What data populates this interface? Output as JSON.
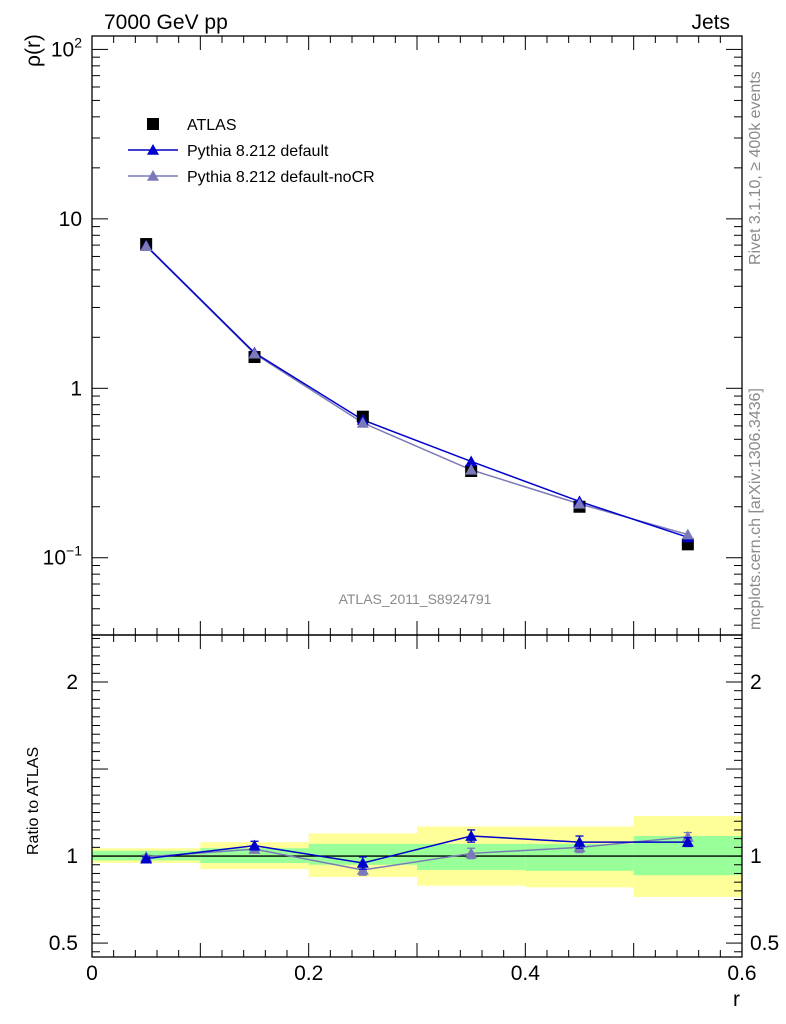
{
  "header": {
    "left": "7000 GeV pp",
    "right": "Jets"
  },
  "side_texts": {
    "rivet": "Rivet 3.1.10, ≥ 400k events",
    "mcplots": "mcplots.cern.ch [arXiv:1306.3436]"
  },
  "colors": {
    "data": "#000000",
    "default": "#0000cc",
    "nocr": "#7a7ab8",
    "band_inner": "#99ff99",
    "band_outer": "#ffff99"
  },
  "chart_data": [
    {
      "type": "line",
      "title": "ATLAS_2011_S8924791",
      "xlabel": "r",
      "ylabel": "ρ(r)",
      "yscale": "log",
      "xlim": [
        0,
        0.6
      ],
      "ylim": [
        0.035,
        120
      ],
      "y_ticks": [
        {
          "value": 0.1,
          "base": "10",
          "exp": "−1"
        },
        {
          "value": 1,
          "base": "1",
          "exp": ""
        },
        {
          "value": 10,
          "base": "10",
          "exp": ""
        },
        {
          "value": 100,
          "base": "10",
          "exp": "2"
        }
      ],
      "legend": [
        "ATLAS",
        "Pythia 8.212 default",
        "Pythia 8.212 default-noCR"
      ],
      "x": [
        0.05,
        0.15,
        0.25,
        0.35,
        0.45,
        0.55
      ],
      "series": [
        {
          "name": "ATLAS",
          "values": [
            7.1,
            1.53,
            0.68,
            0.325,
            0.2,
            0.12
          ]
        },
        {
          "name": "Pythia 8.212 default",
          "values": [
            6.95,
            1.62,
            0.65,
            0.37,
            0.215,
            0.132
          ]
        },
        {
          "name": "Pythia 8.212 default-noCR",
          "values": [
            6.9,
            1.6,
            0.625,
            0.33,
            0.208,
            0.137
          ]
        }
      ]
    },
    {
      "type": "line",
      "xlabel": "r",
      "ylabel": "Ratio to ATLAS",
      "xlim": [
        0,
        0.6
      ],
      "ylim": [
        0.42,
        2.27
      ],
      "x_ticks": [
        "0",
        "0.2",
        "0.4",
        "0.6"
      ],
      "y_ticks": [
        0.5,
        1,
        2
      ],
      "y_tick_labels": [
        "0.5",
        "1",
        "2"
      ],
      "bins": [
        [
          0,
          0.1
        ],
        [
          0.1,
          0.2
        ],
        [
          0.2,
          0.3
        ],
        [
          0.3,
          0.4
        ],
        [
          0.4,
          0.5
        ],
        [
          0.5,
          0.6
        ]
      ],
      "band_inner": [
        [
          0.975,
          1.03
        ],
        [
          0.96,
          1.045
        ],
        [
          0.95,
          1.07
        ],
        [
          0.92,
          1.07
        ],
        [
          0.915,
          1.07
        ],
        [
          0.89,
          1.115
        ]
      ],
      "band_outer": [
        [
          0.96,
          1.045
        ],
        [
          0.925,
          1.08
        ],
        [
          0.88,
          1.13
        ],
        [
          0.83,
          1.17
        ],
        [
          0.82,
          1.17
        ],
        [
          0.765,
          1.23
        ]
      ],
      "x": [
        0.05,
        0.15,
        0.25,
        0.35,
        0.45,
        0.55
      ],
      "series": [
        {
          "name": "Pythia 8.212 default",
          "values": [
            0.985,
            1.06,
            0.96,
            1.115,
            1.08,
            1.08
          ],
          "err": [
            0.01,
            0.025,
            0.035,
            0.035,
            0.035,
            0.025
          ]
        },
        {
          "name": "Pythia 8.212 default-noCR",
          "values": [
            0.995,
            1.04,
            0.92,
            1.015,
            1.05,
            1.11
          ],
          "err": [
            0.01,
            0.02,
            0.03,
            0.03,
            0.03,
            0.025
          ]
        }
      ]
    }
  ]
}
